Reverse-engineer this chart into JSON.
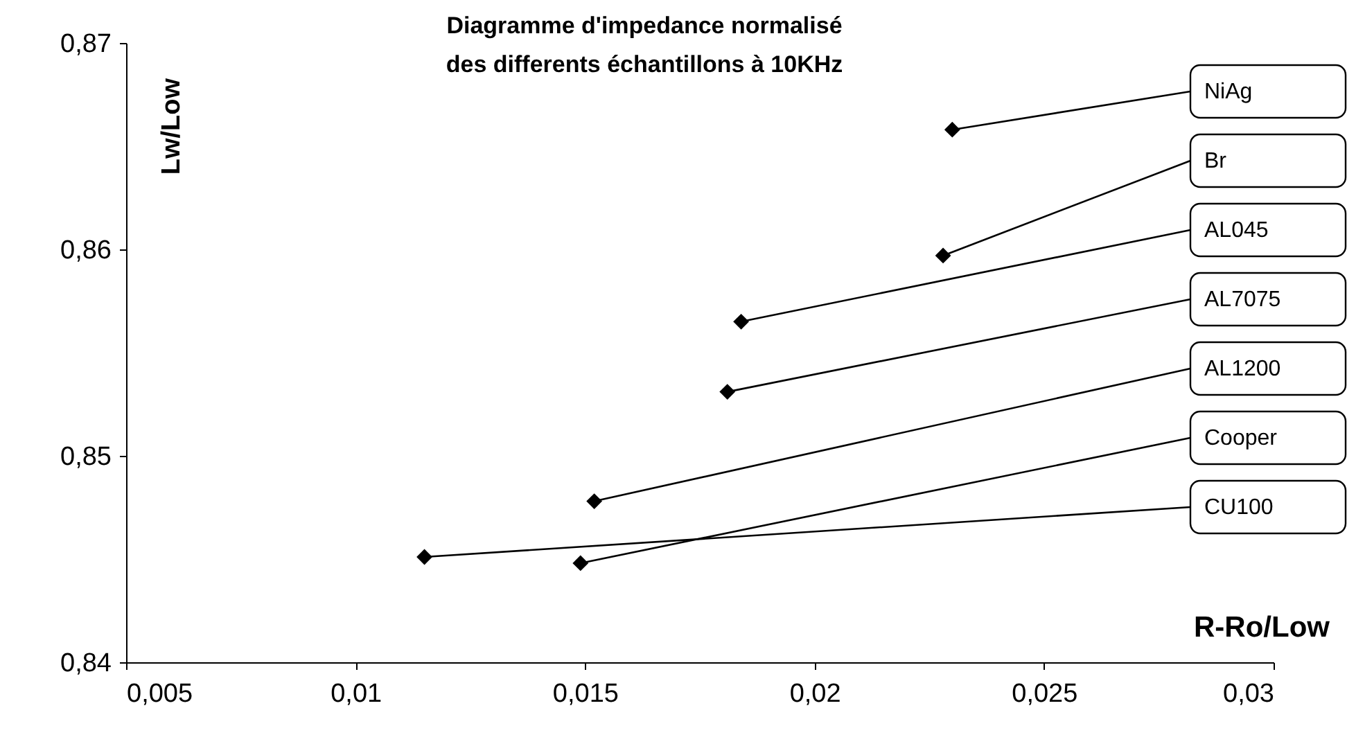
{
  "chart_data": {
    "type": "scatter",
    "title": "Diagramme d'impedance normalisé des differents échantillons à 10KHz",
    "xlabel": "R-Ro/Low",
    "ylabel": "Lw/Low",
    "x": [
      0.023,
      0.0228,
      0.0184,
      0.0181,
      0.0152,
      0.0149,
      0.0115
    ],
    "series": [
      {
        "color": "#000000",
        "values": [
          0.8658,
          0.8597,
          0.8565,
          0.8531,
          0.8478,
          0.8448,
          0.8451
        ]
      }
    ],
    "annotations": [
      {
        "text": "NiAg",
        "x": 0.023,
        "y": 0.8658
      },
      {
        "text": "Br",
        "x": 0.0228,
        "y": 0.8597
      },
      {
        "text": "AL045",
        "x": 0.0184,
        "y": 0.8565
      },
      {
        "text": "AL7075",
        "x": 0.0181,
        "y": 0.8531
      },
      {
        "text": "AL1200",
        "x": 0.0152,
        "y": 0.8478
      },
      {
        "text": "Cooper",
        "x": 0.0149,
        "y": 0.8448
      },
      {
        "text": "CU100",
        "x": 0.0115,
        "y": 0.8451
      }
    ],
    "xlim": [
      0.005,
      0.03
    ],
    "xticks": [
      {
        "value": 0.005,
        "label": "0,005"
      },
      {
        "value": 0.01,
        "label": "0,01"
      },
      {
        "value": 0.015,
        "label": "0,015"
      },
      {
        "value": 0.02,
        "label": "0,02"
      },
      {
        "value": 0.025,
        "label": "0,025"
      },
      {
        "value": 0.03,
        "label": "0,03"
      }
    ],
    "ylim": [
      0.84,
      0.87
    ],
    "yticks": [
      {
        "value": 0.84,
        "label": "0,84"
      },
      {
        "value": 0.85,
        "label": "0,85"
      },
      {
        "value": 0.86,
        "label": "0,86"
      },
      {
        "value": 0.87,
        "label": "0,87"
      }
    ],
    "marker": "diamond",
    "grid": false
  }
}
